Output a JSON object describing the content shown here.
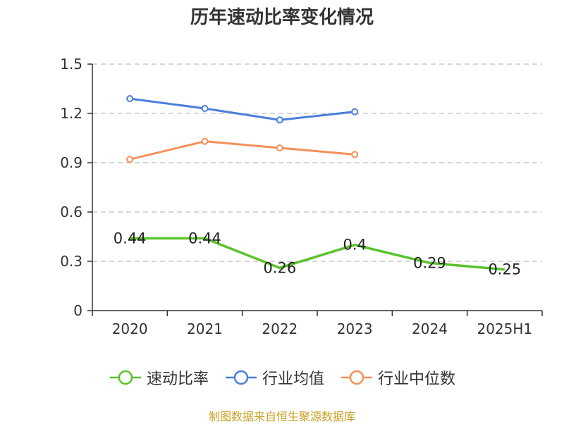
{
  "chart_data": {
    "type": "line",
    "title": "历年速动比率变化情况",
    "categories": [
      "2020",
      "2021",
      "2022",
      "2023",
      "2024",
      "2025H1"
    ],
    "ylim": [
      0,
      1.5
    ],
    "yticks": [
      "0",
      "0.3",
      "0.6",
      "0.9",
      "1.2",
      "1.5"
    ],
    "grid": true,
    "legend_position": "bottom",
    "series": [
      {
        "name": "速动比率",
        "color": "#5cc22c",
        "values": [
          0.44,
          0.44,
          0.26,
          0.4,
          0.29,
          0.25
        ],
        "labels": [
          "0.44",
          "0.44",
          "0.26",
          "0.4",
          "0.29",
          "0.25"
        ]
      },
      {
        "name": "行业均值",
        "color": "#4a7fdc",
        "values": [
          1.29,
          1.23,
          1.16,
          1.21,
          null,
          null
        ]
      },
      {
        "name": "行业中位数",
        "color": "#f5905a",
        "values": [
          0.92,
          1.03,
          0.99,
          0.95,
          null,
          null
        ]
      }
    ]
  },
  "source_note": "制图数据来自恒生聚源数据库"
}
